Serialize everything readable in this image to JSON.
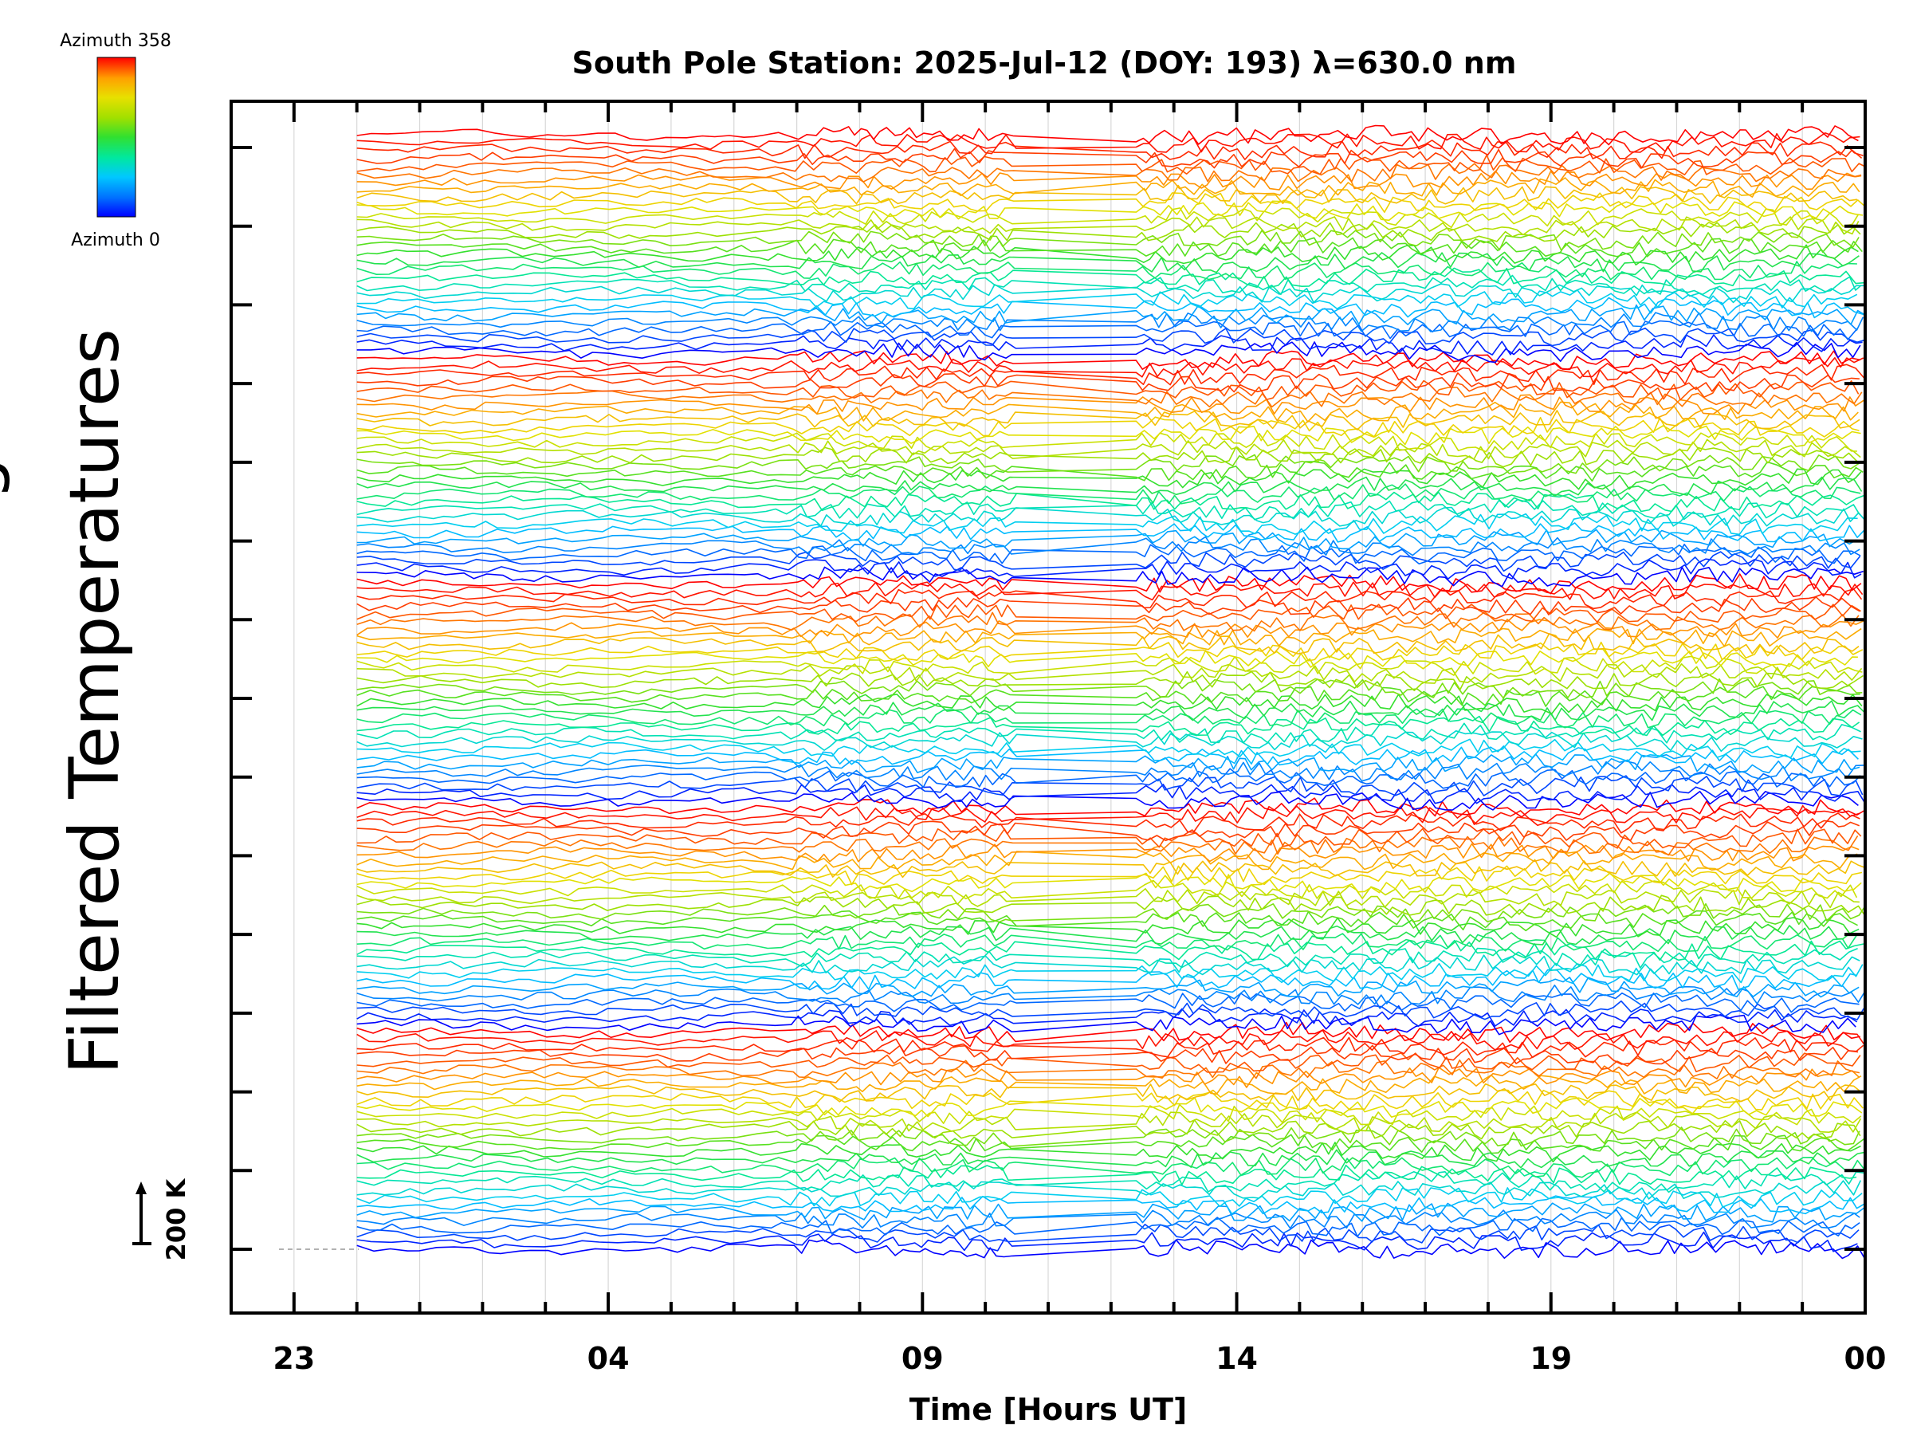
{
  "chart_data": {
    "type": "line",
    "title": "South Pole Station: 2025-Jul-12 (DOY: 193) λ=630.0 nm",
    "xlabel": "Time [Hours UT]",
    "ylabel": "Filtered Temperatures",
    "ylabel_partial": "g",
    "x_tick_labels": [
      "23",
      "04",
      "09",
      "14",
      "19",
      "00"
    ],
    "x_unit": "hours UT",
    "xlim": [
      22,
      48
    ],
    "x_major_ticks": [
      23,
      28,
      33,
      38,
      43,
      48
    ],
    "data_start_x": 24,
    "data_end_x": 48,
    "gap": [
      34.5,
      36.4
    ],
    "scale_bar_label": "200 K",
    "colorbar": {
      "top_label": "Azimuth  358",
      "bottom_label": "Azimuth  0",
      "min": 0,
      "max": 358,
      "colors": [
        "#0000ff",
        "#0070ff",
        "#00c8ff",
        "#00e8a0",
        "#30e030",
        "#a0e000",
        "#e8e000",
        "#ffa000",
        "#ff4000",
        "#ff0000"
      ]
    },
    "groups": 5,
    "azimuth_traces_per_group": 30,
    "series_note": "Each trace is one azimuth direction; traces are stacked with vertical offsets in 5 groups."
  }
}
